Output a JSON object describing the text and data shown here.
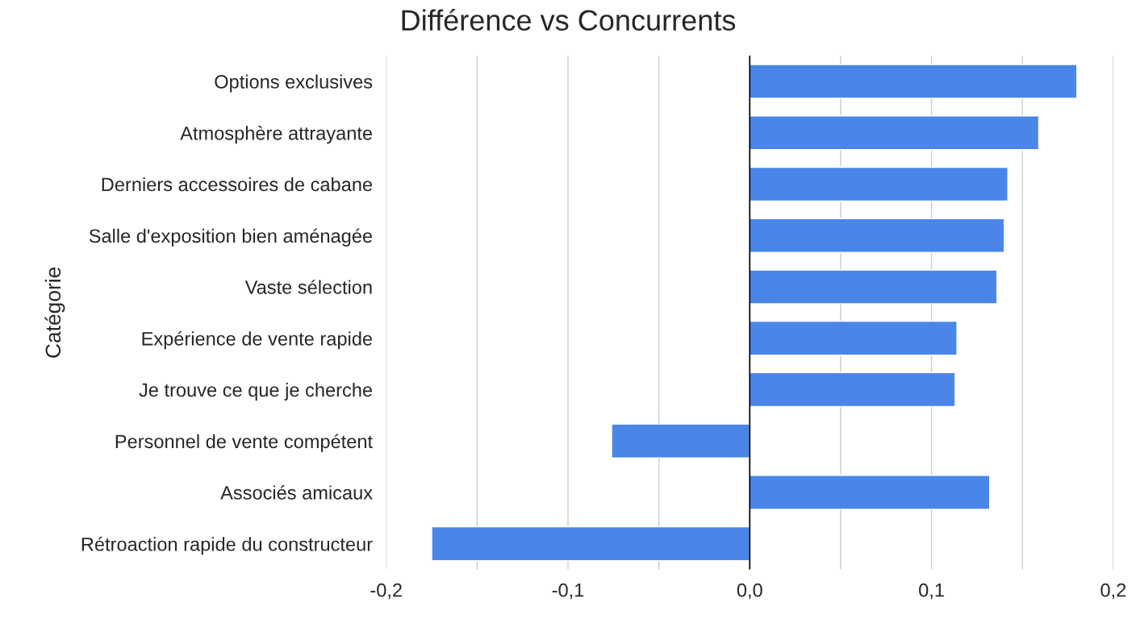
{
  "chart_data": {
    "type": "bar",
    "orientation": "horizontal",
    "title": "Différence vs Concurrents",
    "ylabel": "Catégorie",
    "categories": [
      "Options exclusives",
      "Atmosphère attrayante",
      "Derniers accessoires de cabane",
      "Salle d'exposition bien aménagée",
      "Vaste sélection",
      "Expérience de vente rapide",
      "Je trouve ce que je cherche",
      "Personnel de vente compétent",
      "Associés amicaux",
      "Rétroaction rapide du constructeur"
    ],
    "values": [
      0.18,
      0.159,
      0.142,
      0.14,
      0.136,
      0.114,
      0.113,
      -0.076,
      0.132,
      -0.175
    ],
    "color": "#4a86e8",
    "xlim": [
      -0.2,
      0.2
    ],
    "xticks": [
      {
        "value": -0.2,
        "label": "-0,2"
      },
      {
        "value": -0.15,
        "label": null
      },
      {
        "value": -0.1,
        "label": "-0,1"
      },
      {
        "value": -0.05,
        "label": null
      },
      {
        "value": 0,
        "label": "0,0"
      },
      {
        "value": 0.05,
        "label": null
      },
      {
        "value": 0.1,
        "label": "0,1"
      },
      {
        "value": 0.15,
        "label": null
      },
      {
        "value": 0.2,
        "label": "0,2"
      }
    ],
    "grid": "x",
    "ref_lines": [
      {
        "axis": "x",
        "value": 0,
        "color": "#000000"
      }
    ]
  }
}
